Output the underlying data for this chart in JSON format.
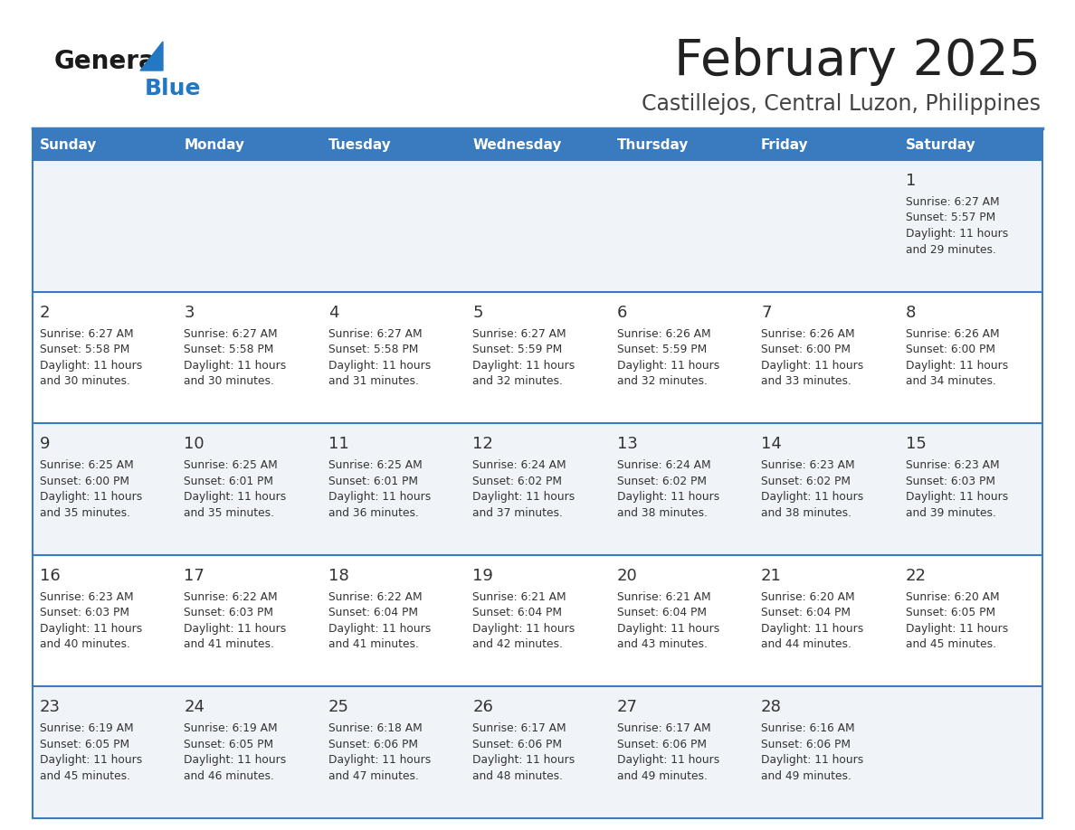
{
  "title": "February 2025",
  "subtitle": "Castillejos, Central Luzon, Philippines",
  "header_bg": "#3a7abf",
  "header_text_color": "#ffffff",
  "day_names": [
    "Sunday",
    "Monday",
    "Tuesday",
    "Wednesday",
    "Thursday",
    "Friday",
    "Saturday"
  ],
  "odd_row_bg": "#f0f4f8",
  "even_row_bg": "#ffffff",
  "cell_text_color": "#333333",
  "divider_color": "#3a7abf",
  "title_color": "#222222",
  "subtitle_color": "#444444",
  "logo_general_color": "#1a1a1a",
  "logo_blue_color": "#2278c3",
  "weeks": [
    [
      null,
      null,
      null,
      null,
      null,
      null,
      {
        "day": 1,
        "sunrise": "6:27 AM",
        "sunset": "5:57 PM",
        "daylight": "11 hours and 29 minutes."
      }
    ],
    [
      {
        "day": 2,
        "sunrise": "6:27 AM",
        "sunset": "5:58 PM",
        "daylight": "11 hours and 30 minutes."
      },
      {
        "day": 3,
        "sunrise": "6:27 AM",
        "sunset": "5:58 PM",
        "daylight": "11 hours and 30 minutes."
      },
      {
        "day": 4,
        "sunrise": "6:27 AM",
        "sunset": "5:58 PM",
        "daylight": "11 hours and 31 minutes."
      },
      {
        "day": 5,
        "sunrise": "6:27 AM",
        "sunset": "5:59 PM",
        "daylight": "11 hours and 32 minutes."
      },
      {
        "day": 6,
        "sunrise": "6:26 AM",
        "sunset": "5:59 PM",
        "daylight": "11 hours and 32 minutes."
      },
      {
        "day": 7,
        "sunrise": "6:26 AM",
        "sunset": "6:00 PM",
        "daylight": "11 hours and 33 minutes."
      },
      {
        "day": 8,
        "sunrise": "6:26 AM",
        "sunset": "6:00 PM",
        "daylight": "11 hours and 34 minutes."
      }
    ],
    [
      {
        "day": 9,
        "sunrise": "6:25 AM",
        "sunset": "6:00 PM",
        "daylight": "11 hours and 35 minutes."
      },
      {
        "day": 10,
        "sunrise": "6:25 AM",
        "sunset": "6:01 PM",
        "daylight": "11 hours and 35 minutes."
      },
      {
        "day": 11,
        "sunrise": "6:25 AM",
        "sunset": "6:01 PM",
        "daylight": "11 hours and 36 minutes."
      },
      {
        "day": 12,
        "sunrise": "6:24 AM",
        "sunset": "6:02 PM",
        "daylight": "11 hours and 37 minutes."
      },
      {
        "day": 13,
        "sunrise": "6:24 AM",
        "sunset": "6:02 PM",
        "daylight": "11 hours and 38 minutes."
      },
      {
        "day": 14,
        "sunrise": "6:23 AM",
        "sunset": "6:02 PM",
        "daylight": "11 hours and 38 minutes."
      },
      {
        "day": 15,
        "sunrise": "6:23 AM",
        "sunset": "6:03 PM",
        "daylight": "11 hours and 39 minutes."
      }
    ],
    [
      {
        "day": 16,
        "sunrise": "6:23 AM",
        "sunset": "6:03 PM",
        "daylight": "11 hours and 40 minutes."
      },
      {
        "day": 17,
        "sunrise": "6:22 AM",
        "sunset": "6:03 PM",
        "daylight": "11 hours and 41 minutes."
      },
      {
        "day": 18,
        "sunrise": "6:22 AM",
        "sunset": "6:04 PM",
        "daylight": "11 hours and 41 minutes."
      },
      {
        "day": 19,
        "sunrise": "6:21 AM",
        "sunset": "6:04 PM",
        "daylight": "11 hours and 42 minutes."
      },
      {
        "day": 20,
        "sunrise": "6:21 AM",
        "sunset": "6:04 PM",
        "daylight": "11 hours and 43 minutes."
      },
      {
        "day": 21,
        "sunrise": "6:20 AM",
        "sunset": "6:04 PM",
        "daylight": "11 hours and 44 minutes."
      },
      {
        "day": 22,
        "sunrise": "6:20 AM",
        "sunset": "6:05 PM",
        "daylight": "11 hours and 45 minutes."
      }
    ],
    [
      {
        "day": 23,
        "sunrise": "6:19 AM",
        "sunset": "6:05 PM",
        "daylight": "11 hours and 45 minutes."
      },
      {
        "day": 24,
        "sunrise": "6:19 AM",
        "sunset": "6:05 PM",
        "daylight": "11 hours and 46 minutes."
      },
      {
        "day": 25,
        "sunrise": "6:18 AM",
        "sunset": "6:06 PM",
        "daylight": "11 hours and 47 minutes."
      },
      {
        "day": 26,
        "sunrise": "6:17 AM",
        "sunset": "6:06 PM",
        "daylight": "11 hours and 48 minutes."
      },
      {
        "day": 27,
        "sunrise": "6:17 AM",
        "sunset": "6:06 PM",
        "daylight": "11 hours and 49 minutes."
      },
      {
        "day": 28,
        "sunrise": "6:16 AM",
        "sunset": "6:06 PM",
        "daylight": "11 hours and 49 minutes."
      },
      null
    ]
  ]
}
